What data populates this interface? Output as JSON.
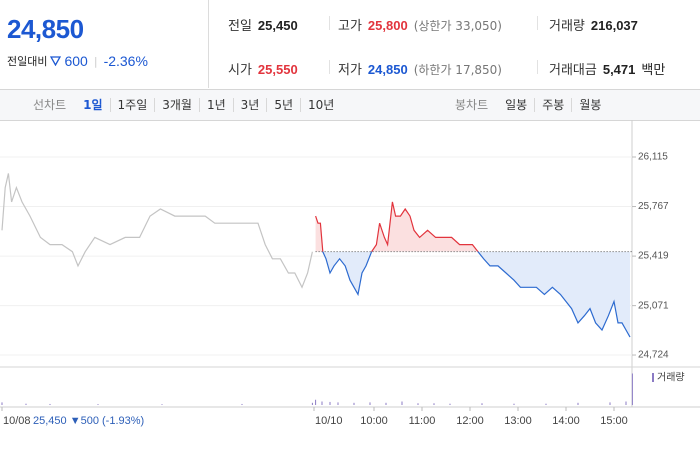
{
  "header": {
    "price": "24,850",
    "change_label": "전일대비",
    "change": "600",
    "change_pct": "-2.36%",
    "stats": [
      {
        "label": "전일",
        "value": "25,450"
      },
      {
        "label": "고가",
        "value": "25,800",
        "note": "(상한가 33,050)"
      },
      {
        "label": "거래량",
        "value": "216,037"
      },
      {
        "label": "시가",
        "value": "25,550"
      },
      {
        "label": "저가",
        "value": "24,850",
        "note": "(하한가 17,850)"
      },
      {
        "label": "거래대금",
        "value": "5,471",
        "unit": "백만"
      }
    ]
  },
  "tabs": {
    "line_label": "선차트",
    "line_items": [
      "1일",
      "1주일",
      "3개월",
      "1년",
      "3년",
      "5년",
      "10년"
    ],
    "candle_label": "봉차트",
    "candle_items": [
      "일봉",
      "주봉",
      "월봉"
    ]
  },
  "chart_data": {
    "type": "line",
    "baseline": 25450,
    "xlim": [
      0,
      800
    ],
    "ylim": [
      24654,
      26375
    ],
    "yticks": [
      {
        "value": 26115,
        "label": "26,115"
      },
      {
        "value": 25767,
        "label": "25,767"
      },
      {
        "value": 25419,
        "label": "25,419"
      },
      {
        "value": 25071,
        "label": "25,071"
      },
      {
        "value": 24724,
        "label": "24,724"
      }
    ],
    "xticks": [
      {
        "value": 0,
        "label": "10/08"
      },
      {
        "value": 390,
        "label": "10/10"
      },
      {
        "value": 465,
        "label": "10:00"
      },
      {
        "value": 525,
        "label": "11:00"
      },
      {
        "value": 585,
        "label": "12:00"
      },
      {
        "value": 645,
        "label": "13:00"
      },
      {
        "value": 705,
        "label": "14:00"
      },
      {
        "value": 765,
        "label": "15:00"
      }
    ],
    "annotation": "25,450 ▼500 (-1.93%)",
    "series": [
      {
        "color": "#c4c4c4",
        "x": [
          0,
          4,
          8,
          12,
          18,
          25,
          35,
          48,
          60,
          75,
          88,
          95,
          104,
          116,
          135,
          154,
          172,
          185,
          198,
          216,
          235,
          254,
          266,
          285,
          304,
          320,
          329,
          338,
          348,
          358,
          366,
          375,
          382,
          388
        ],
        "values": [
          25600,
          25900,
          26000,
          25800,
          25900,
          25800,
          25700,
          25550,
          25500,
          25500,
          25450,
          25350,
          25450,
          25550,
          25500,
          25550,
          25550,
          25700,
          25750,
          25700,
          25700,
          25700,
          25650,
          25650,
          25650,
          25650,
          25500,
          25400,
          25400,
          25300,
          25300,
          25200,
          25300,
          25450
        ]
      },
      {
        "color": "#e2343d",
        "color_below": "#2d6bd0",
        "fill": "#fbe0e0",
        "fill_below": "#e2ebfa",
        "x": [
          392,
          395,
          398,
          401,
          405,
          410,
          415,
          422,
          429,
          435,
          440,
          445,
          450,
          455,
          462,
          468,
          472,
          478,
          482,
          488,
          492,
          498,
          504,
          510,
          515,
          522,
          532,
          542,
          552,
          562,
          572,
          580,
          588,
          595,
          602,
          610,
          620,
          630,
          640,
          648,
          658,
          668,
          678,
          688,
          698,
          705,
          712,
          720,
          728,
          735,
          742,
          750,
          758,
          765,
          770,
          775,
          780,
          785
        ],
        "values": [
          25700,
          25650,
          25650,
          25450,
          25400,
          25300,
          25350,
          25400,
          25350,
          25250,
          25200,
          25150,
          25300,
          25350,
          25450,
          25500,
          25650,
          25550,
          25500,
          25800,
          25700,
          25700,
          25750,
          25700,
          25600,
          25550,
          25600,
          25550,
          25550,
          25550,
          25500,
          25500,
          25500,
          25450,
          25400,
          25350,
          25350,
          25300,
          25250,
          25200,
          25200,
          25200,
          25150,
          25200,
          25150,
          25100,
          25050,
          24950,
          25000,
          25050,
          24950,
          24900,
          25000,
          25100,
          24950,
          24950,
          24900,
          24850
        ]
      }
    ],
    "volume": {
      "name": "거래량",
      "color": "#8b7bc4",
      "ylim": [
        0,
        40000
      ],
      "x": [
        0,
        30,
        60,
        120,
        200,
        300,
        388,
        392,
        400,
        410,
        420,
        440,
        460,
        480,
        500,
        520,
        540,
        560,
        600,
        640,
        680,
        720,
        760,
        780,
        788
      ],
      "values": [
        3000,
        1500,
        1200,
        1000,
        900,
        1200,
        2500,
        6000,
        4000,
        3500,
        3000,
        2500,
        3000,
        2500,
        4000,
        2000,
        2000,
        1500,
        2000,
        1500,
        1500,
        2500,
        3000,
        4000,
        36000
      ]
    }
  }
}
